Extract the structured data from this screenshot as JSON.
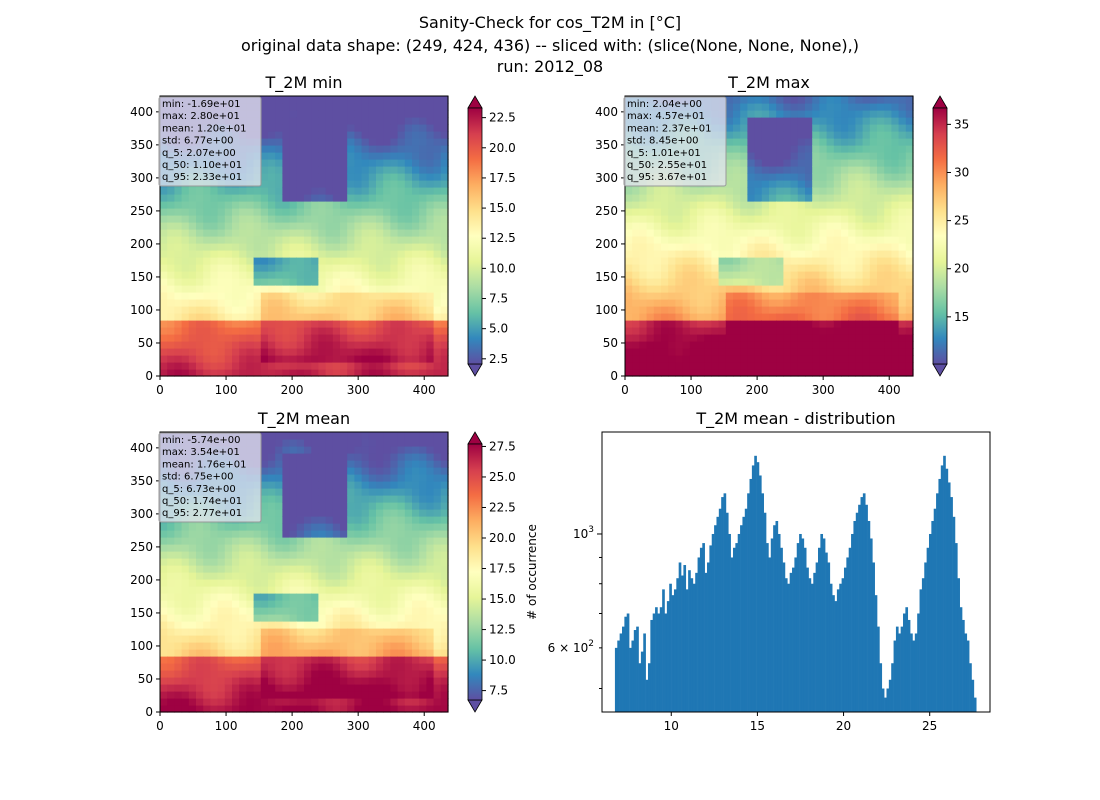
{
  "figure": {
    "title_lines": [
      "Sanity-Check for cos_T2M in [°C]",
      "original data shape: (249, 424, 436) -- sliced with: (slice(None, None, None),)",
      "run: 2012_08"
    ]
  },
  "colors": {
    "hist_bar": "#1f77b4",
    "stats_box_bg": "#e6e6f0",
    "cmap": "Spectral_r"
  },
  "chart_data": [
    {
      "type": "heatmap",
      "title": "T_2M min",
      "xlim": [
        0,
        436
      ],
      "ylim": [
        0,
        424
      ],
      "xticks": [
        0,
        100,
        200,
        300,
        400
      ],
      "yticks": [
        0,
        50,
        100,
        150,
        200,
        250,
        300,
        350,
        400
      ],
      "stats": [
        "min: -1.69e+01",
        "max: 2.80e+01",
        "mean: 1.20e+01",
        "std: 6.77e+00",
        "q_5: 2.07e+00",
        "q_50: 1.10e+01",
        "q_95: 2.33e+01"
      ],
      "colorbar": {
        "range": [
          2.07,
          23.3
        ],
        "ticks": [
          2.5,
          5.0,
          7.5,
          10.0,
          12.5,
          15.0,
          17.5,
          20.0,
          22.5
        ],
        "tick_labels": [
          "2.5",
          "5.0",
          "7.5",
          "10.0",
          "12.5",
          "15.0",
          "17.5",
          "20.0",
          "22.5"
        ],
        "extend": "both"
      }
    },
    {
      "type": "heatmap",
      "title": "T_2M max",
      "xlim": [
        0,
        436
      ],
      "ylim": [
        0,
        424
      ],
      "xticks": [
        0,
        100,
        200,
        300,
        400
      ],
      "yticks": [
        0,
        50,
        100,
        150,
        200,
        250,
        300,
        350,
        400
      ],
      "stats": [
        "min: 2.04e+00",
        "max: 4.57e+01",
        "mean: 2.37e+01",
        "std: 8.45e+00",
        "q_5: 1.01e+01",
        "q_50: 2.55e+01",
        "q_95: 3.67e+01"
      ],
      "colorbar": {
        "range": [
          10.1,
          36.7
        ],
        "ticks": [
          15,
          20,
          25,
          30,
          35
        ],
        "tick_labels": [
          "15",
          "20",
          "25",
          "30",
          "35"
        ],
        "extend": "both"
      }
    },
    {
      "type": "heatmap",
      "title": "T_2M mean",
      "xlim": [
        0,
        436
      ],
      "ylim": [
        0,
        424
      ],
      "xticks": [
        0,
        100,
        200,
        300,
        400
      ],
      "yticks": [
        0,
        50,
        100,
        150,
        200,
        250,
        300,
        350,
        400
      ],
      "stats": [
        "min: -5.74e+00",
        "max: 3.54e+01",
        "mean: 1.76e+01",
        "std: 6.75e+00",
        "q_5: 6.73e+00",
        "q_50: 1.74e+01",
        "q_95: 2.77e+01"
      ],
      "colorbar": {
        "range": [
          6.73,
          27.7
        ],
        "ticks": [
          7.5,
          10.0,
          12.5,
          15.0,
          17.5,
          20.0,
          22.5,
          25.0,
          27.5
        ],
        "tick_labels": [
          "7.5",
          "10.0",
          "12.5",
          "15.0",
          "17.5",
          "20.0",
          "22.5",
          "25.0",
          "27.5"
        ],
        "extend": "both"
      }
    },
    {
      "type": "bar",
      "title": "T_2M mean - distribution",
      "ylabel": "# of occurrence",
      "xlabel": "",
      "yscale": "log",
      "xlim": [
        5.98,
        28.5
      ],
      "ylim": [
        450,
        1580
      ],
      "xticks": [
        10,
        15,
        20,
        25
      ],
      "yticks_major": [
        {
          "value": 1000,
          "label": "10^3"
        }
      ],
      "yticks_minor": [
        {
          "value": 600,
          "label": "6 × 10^2"
        }
      ],
      "bin_range": [
        6.73,
        27.7
      ],
      "values": [
        600,
        620,
        640,
        660,
        690,
        700,
        600,
        620,
        650,
        660,
        560,
        590,
        640,
        520,
        560,
        680,
        700,
        720,
        700,
        720,
        780,
        700,
        740,
        800,
        760,
        780,
        820,
        880,
        830,
        870,
        780,
        850,
        820,
        800,
        840,
        900,
        940,
        960,
        840,
        880,
        950,
        1000,
        1040,
        1080,
        1120,
        1180,
        1200,
        1100,
        1000,
        900,
        940,
        960,
        1000,
        1040,
        1080,
        1120,
        1200,
        1280,
        1360,
        1420,
        1380,
        1300,
        1200,
        1100,
        960,
        900,
        980,
        1040,
        1060,
        1000,
        940,
        880,
        820,
        800,
        840,
        860,
        900,
        960,
        1000,
        980,
        940,
        860,
        820,
        800,
        840,
        880,
        940,
        1000,
        980,
        920,
        880,
        800,
        760,
        740,
        780,
        800,
        820,
        860,
        900,
        940,
        1000,
        1060,
        1100,
        1140,
        1180,
        1200,
        1140,
        1060,
        980,
        880,
        760,
        660,
        560,
        500,
        480,
        500,
        520,
        560,
        620,
        660,
        640,
        660,
        700,
        720,
        680,
        640,
        620,
        640,
        700,
        780,
        820,
        880,
        940,
        1000,
        1060,
        1120,
        1200,
        1280,
        1360,
        1420,
        1340,
        1260,
        1180,
        1080,
        960,
        820,
        720,
        680,
        640,
        620,
        560,
        520,
        480
      ]
    }
  ]
}
